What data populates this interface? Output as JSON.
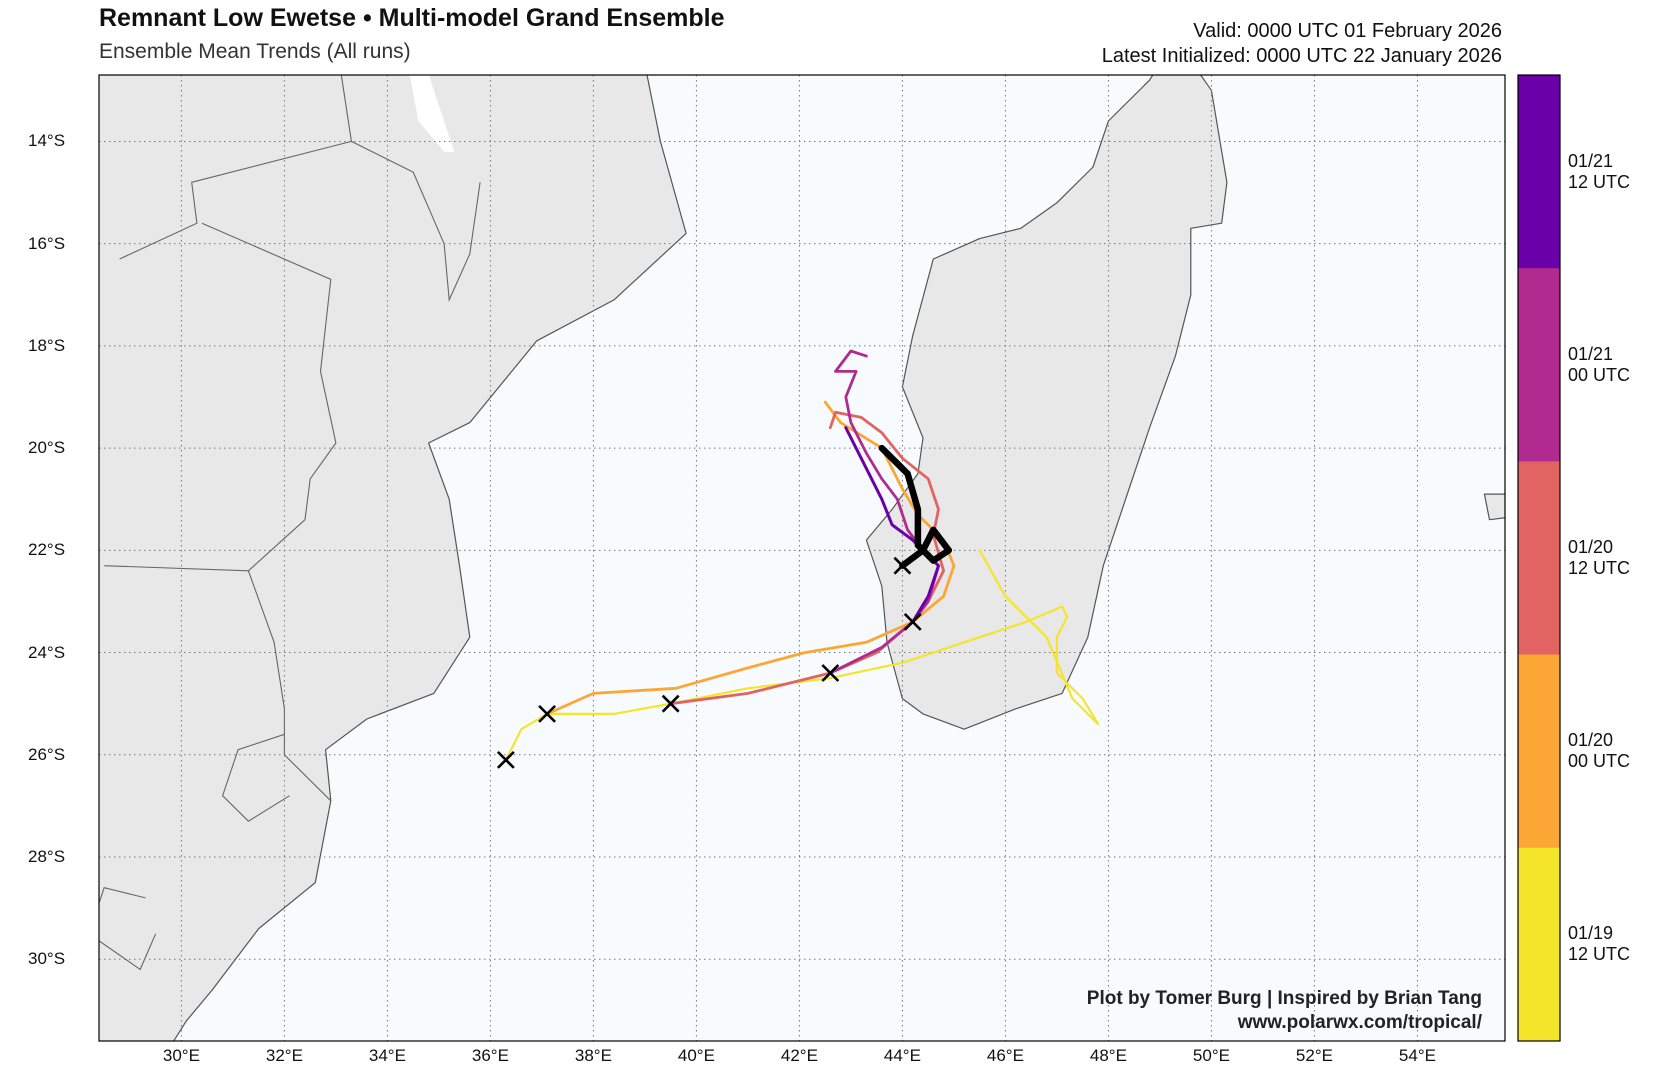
{
  "header": {
    "title": "Remnant Low Ewetse • Multi-model Grand Ensemble",
    "subtitle": "Ensemble Mean Trends (All runs)",
    "valid": "Valid: 0000 UTC 01 February 2026",
    "initialized": "Latest Initialized: 0000 UTC 22 January 2026"
  },
  "axes": {
    "lat_labels": [
      "14°S",
      "16°S",
      "18°S",
      "20°S",
      "22°S",
      "24°S",
      "26°S",
      "28°S",
      "30°S"
    ],
    "lat_values": [
      -14,
      -16,
      -18,
      -20,
      -22,
      -24,
      -26,
      -28,
      -30
    ],
    "lon_labels": [
      "30°E",
      "32°E",
      "34°E",
      "36°E",
      "38°E",
      "40°E",
      "42°E",
      "44°E",
      "46°E",
      "48°E",
      "50°E",
      "52°E",
      "54°E"
    ],
    "lon_values": [
      30,
      32,
      34,
      36,
      38,
      40,
      42,
      44,
      46,
      48,
      50,
      52,
      54
    ],
    "lon_range": [
      28.4,
      55.7
    ],
    "lat_range": [
      -31.6,
      -12.7
    ],
    "grid": true
  },
  "colorbar": {
    "labels": [
      "01/21\n12 UTC",
      "01/21\n00 UTC",
      "01/20\n12 UTC",
      "01/20\n00 UTC",
      "01/19\n12 UTC"
    ],
    "colors": [
      "#6a00a8",
      "#b12a90",
      "#e16462",
      "#fca636",
      "#f4e52b"
    ]
  },
  "colors": {
    "ocean": "#f8fbfd",
    "land": "#e8e8e8",
    "coast": "#555555",
    "grid": "#777777",
    "mean_track": "#000000"
  },
  "tracks": [
    {
      "color": "#f4e52b",
      "width": 2.2,
      "points": [
        [
          36.3,
          -26.1
        ],
        [
          36.6,
          -25.5
        ],
        [
          37.1,
          -25.2
        ],
        [
          38.4,
          -25.2
        ],
        [
          39.5,
          -25.0
        ],
        [
          41.0,
          -24.7
        ],
        [
          42.6,
          -24.5
        ],
        [
          44.0,
          -24.2
        ],
        [
          45.2,
          -23.8
        ],
        [
          46.4,
          -23.4
        ],
        [
          47.1,
          -23.1
        ],
        [
          47.2,
          -23.3
        ],
        [
          47.0,
          -23.7
        ],
        [
          47.0,
          -24.4
        ],
        [
          47.5,
          -24.9
        ],
        [
          47.8,
          -25.4
        ],
        [
          47.3,
          -24.9
        ],
        [
          46.8,
          -23.7
        ],
        [
          46.0,
          -22.9
        ],
        [
          45.5,
          -22.0
        ]
      ]
    },
    {
      "color": "#fca636",
      "width": 2.8,
      "points": [
        [
          37.1,
          -25.2
        ],
        [
          38.0,
          -24.8
        ],
        [
          39.6,
          -24.7
        ],
        [
          41.0,
          -24.3
        ],
        [
          42.1,
          -24.0
        ],
        [
          43.3,
          -23.8
        ],
        [
          44.2,
          -23.4
        ],
        [
          44.8,
          -22.9
        ],
        [
          45.0,
          -22.3
        ],
        [
          44.8,
          -21.8
        ],
        [
          44.3,
          -21.3
        ],
        [
          44.0,
          -20.8
        ],
        [
          43.6,
          -20.0
        ],
        [
          42.8,
          -19.5
        ],
        [
          42.5,
          -19.1
        ]
      ]
    },
    {
      "color": "#e16462",
      "width": 2.8,
      "points": [
        [
          39.5,
          -25.0
        ],
        [
          41.0,
          -24.8
        ],
        [
          42.6,
          -24.4
        ],
        [
          43.5,
          -24.0
        ],
        [
          44.2,
          -23.4
        ],
        [
          44.5,
          -23.0
        ],
        [
          44.8,
          -22.4
        ],
        [
          44.6,
          -21.7
        ],
        [
          44.7,
          -21.2
        ],
        [
          44.5,
          -20.6
        ],
        [
          44.0,
          -20.2
        ],
        [
          43.6,
          -19.7
        ],
        [
          43.2,
          -19.4
        ],
        [
          42.7,
          -19.3
        ],
        [
          42.6,
          -19.6
        ]
      ]
    },
    {
      "color": "#b12a90",
      "width": 2.8,
      "points": [
        [
          42.6,
          -24.4
        ],
        [
          43.6,
          -23.9
        ],
        [
          44.2,
          -23.4
        ],
        [
          44.5,
          -23.0
        ],
        [
          44.7,
          -22.3
        ],
        [
          44.4,
          -22.0
        ],
        [
          44.1,
          -21.6
        ],
        [
          43.9,
          -21.0
        ],
        [
          43.6,
          -20.6
        ],
        [
          43.3,
          -20.1
        ],
        [
          43.0,
          -19.5
        ],
        [
          42.9,
          -19.0
        ],
        [
          43.1,
          -18.5
        ],
        [
          42.7,
          -18.5
        ],
        [
          43.0,
          -18.1
        ],
        [
          43.3,
          -18.2
        ]
      ]
    },
    {
      "color": "#6a00a8",
      "width": 3.0,
      "points": [
        [
          44.2,
          -23.4
        ],
        [
          44.5,
          -22.9
        ],
        [
          44.7,
          -22.3
        ],
        [
          44.4,
          -22.0
        ],
        [
          44.2,
          -21.8
        ],
        [
          43.8,
          -21.5
        ],
        [
          43.6,
          -21.0
        ],
        [
          43.3,
          -20.4
        ],
        [
          42.9,
          -19.6
        ]
      ]
    },
    {
      "color": "#000000",
      "width": 6.5,
      "points": [
        [
          44.0,
          -22.3
        ],
        [
          44.4,
          -22.0
        ],
        [
          44.6,
          -21.6
        ],
        [
          44.9,
          -22.0
        ],
        [
          44.6,
          -22.2
        ],
        [
          44.3,
          -21.9
        ],
        [
          44.3,
          -21.2
        ],
        [
          44.1,
          -20.5
        ],
        [
          43.6,
          -20.0
        ]
      ]
    }
  ],
  "markers": [
    [
      36.3,
      -26.1
    ],
    [
      37.1,
      -25.2
    ],
    [
      39.5,
      -25.0
    ],
    [
      42.6,
      -24.4
    ],
    [
      44.2,
      -23.4
    ],
    [
      44.0,
      -22.3
    ]
  ],
  "credit": {
    "line1": "Plot by Tomer Burg | Inspired by Brian Tang",
    "line2": "www.polarwx.com/tropical/"
  }
}
